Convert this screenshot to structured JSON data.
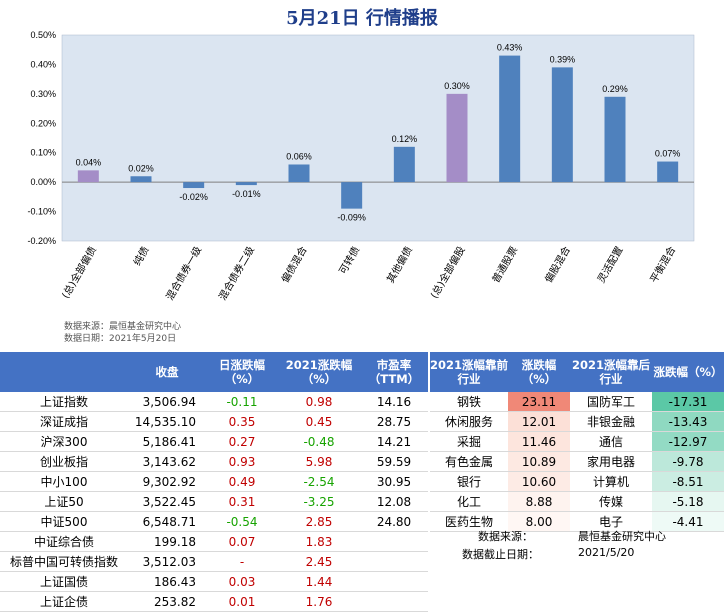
{
  "title": "5月21日  行情播报",
  "chart_data": {
    "type": "bar",
    "categories": [
      "(总)全部偏债",
      "纯债",
      "混合债券一级",
      "混合债券二级",
      "偏债混合",
      "可转债",
      "其他偏债",
      "(总)全部偏股",
      "普通股票",
      "偏股混合",
      "灵活配置",
      "平衡混合"
    ],
    "values": [
      0.04,
      0.02,
      -0.02,
      -0.01,
      0.06,
      -0.09,
      0.12,
      0.3,
      0.43,
      0.39,
      0.29,
      0.07
    ],
    "data_labels": [
      "0.04%",
      "0.02%",
      "-0.02%",
      "-0.01%",
      "0.06%",
      "-0.09%",
      "0.12%",
      "0.30%",
      "0.43%",
      "0.39%",
      "0.29%",
      "0.07%"
    ],
    "ylim": [
      -0.2,
      0.5
    ],
    "yticks": [
      "-0.20%",
      "-0.10%",
      "0.00%",
      "0.10%",
      "0.20%",
      "0.30%",
      "0.40%",
      "0.50%"
    ],
    "colors": [
      "#a48dc7",
      "#4f81bd",
      "#4f81bd",
      "#4f81bd",
      "#4f81bd",
      "#4f81bd",
      "#4f81bd",
      "#a48dc7",
      "#4f81bd",
      "#4f81bd",
      "#4f81bd",
      "#4f81bd"
    ],
    "grid": false
  },
  "source": {
    "line1": "数据来源：晨恒基金研究中心",
    "line2": "数据日期：2021年5月20日"
  },
  "index_table": {
    "headers": [
      "",
      "收盘",
      "日涨跌幅\n（%）",
      "2021涨跌幅\n（%）",
      "市盈率\n（TTM）"
    ],
    "rows": [
      {
        "name": "上证指数",
        "close": "3,506.94",
        "day": "-0.11",
        "day_dir": "green",
        "ytd": "0.98",
        "ytd_dir": "red",
        "pe": "14.16"
      },
      {
        "name": "深证成指",
        "close": "14,535.10",
        "day": "0.35",
        "day_dir": "red",
        "ytd": "0.45",
        "ytd_dir": "red",
        "pe": "28.75"
      },
      {
        "name": "沪深300",
        "close": "5,186.41",
        "day": "0.27",
        "day_dir": "red",
        "ytd": "-0.48",
        "ytd_dir": "green",
        "pe": "14.21"
      },
      {
        "name": "创业板指",
        "close": "3,143.62",
        "day": "0.93",
        "day_dir": "red",
        "ytd": "5.98",
        "ytd_dir": "red",
        "pe": "59.59"
      },
      {
        "name": "中小100",
        "close": "9,302.92",
        "day": "0.49",
        "day_dir": "red",
        "ytd": "-2.54",
        "ytd_dir": "green",
        "pe": "30.95"
      },
      {
        "name": "上证50",
        "close": "3,522.45",
        "day": "0.31",
        "day_dir": "red",
        "ytd": "-3.25",
        "ytd_dir": "green",
        "pe": "12.08"
      },
      {
        "name": "中证500",
        "close": "6,548.71",
        "day": "-0.54",
        "day_dir": "green",
        "ytd": "2.85",
        "ytd_dir": "red",
        "pe": "24.80"
      },
      {
        "name": "中证综合债",
        "close": "199.18",
        "day": "0.07",
        "day_dir": "red",
        "ytd": "1.83",
        "ytd_dir": "red",
        "pe": ""
      },
      {
        "name": "标普中国可转债指数",
        "close": "3,512.03",
        "day": "-",
        "day_dir": "red",
        "ytd": "2.45",
        "ytd_dir": "red",
        "pe": ""
      },
      {
        "name": "上证国债",
        "close": "186.43",
        "day": "0.03",
        "day_dir": "red",
        "ytd": "1.44",
        "ytd_dir": "red",
        "pe": ""
      },
      {
        "name": "上证企债",
        "close": "253.82",
        "day": "0.01",
        "day_dir": "red",
        "ytd": "1.76",
        "ytd_dir": "red",
        "pe": ""
      }
    ]
  },
  "industry_table": {
    "headers": [
      "2021涨幅靠前\n行业",
      "涨跌幅\n（%）",
      "2021涨幅靠后\n行业",
      "涨跌幅（%）"
    ],
    "rows": [
      {
        "top": "钢铁",
        "top_val": "23.11",
        "top_color": "#f08877",
        "bot": "国防军工",
        "bot_val": "-17.31",
        "bot_color": "#5bc8a6"
      },
      {
        "top": "休闲服务",
        "top_val": "12.01",
        "top_color": "#fce0d7",
        "bot": "非银金融",
        "bot_val": "-13.43",
        "bot_color": "#8fd9c1"
      },
      {
        "top": "采掘",
        "top_val": "11.46",
        "top_color": "#fde5dd",
        "bot": "通信",
        "bot_val": "-12.97",
        "bot_color": "#93dbc4"
      },
      {
        "top": "有色金属",
        "top_val": "10.89",
        "top_color": "#fde9e2",
        "bot": "家用电器",
        "bot_val": "-9.78",
        "bot_color": "#bce8da"
      },
      {
        "top": "银行",
        "top_val": "10.60",
        "top_color": "#fdebe5",
        "bot": "计算机",
        "bot_val": "-8.51",
        "bot_color": "#cbede2"
      },
      {
        "top": "化工",
        "top_val": "8.88",
        "top_color": "#fef3ef",
        "bot": "传媒",
        "bot_val": "-5.18",
        "bot_color": "#e6f7f1"
      },
      {
        "top": "医药生物",
        "top_val": "8.00",
        "top_color": "#fff7f4",
        "bot": "电子",
        "bot_val": "-4.41",
        "bot_color": "#eefaf6"
      }
    ],
    "source_label": "数据来源：",
    "source_value": "晨恒基金研究中心",
    "date_label": "数据截止日期：",
    "date_value": "2021/5/20"
  }
}
